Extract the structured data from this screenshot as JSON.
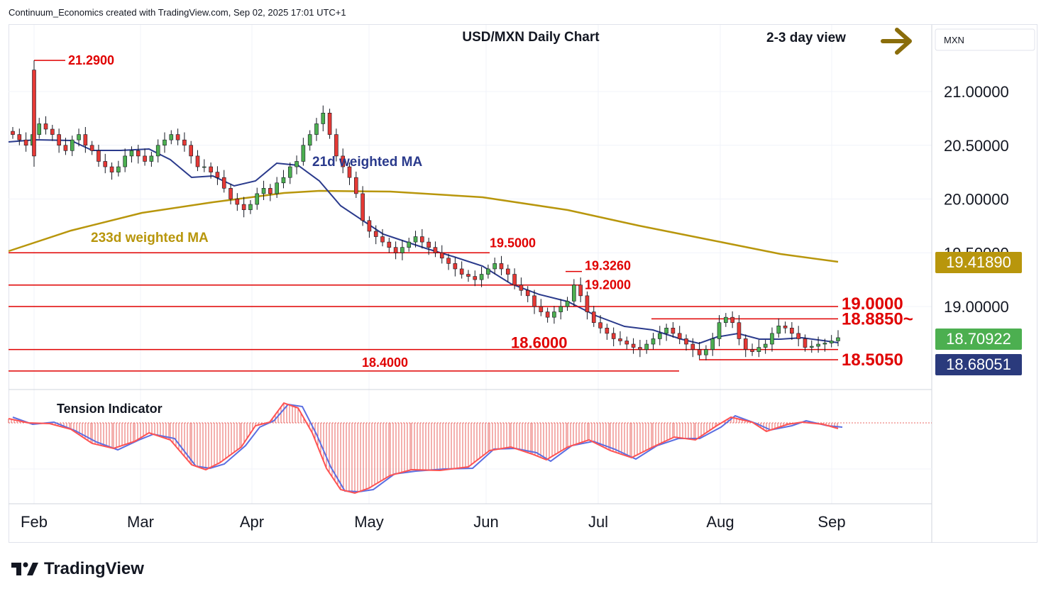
{
  "header": {
    "attribution": "Continuum_Economics created with TradingView.com, Sep 02, 2025 17:01 UTC+1"
  },
  "brand": {
    "name": "TradingView",
    "icon": "tradingview-logo-icon"
  },
  "chart_data": {
    "type": "candlestick",
    "title": "USD/MXN Daily Chart",
    "view_note": "2-3 day view",
    "view_arrow": {
      "icon": "right-arrow-icon",
      "color": "#8a6d0b"
    },
    "currency_label": "MXN",
    "x_ticks": [
      "Feb",
      "Mar",
      "Apr",
      "May",
      "Jun",
      "Jul",
      "Aug",
      "Sep"
    ],
    "y_ticks": [
      "21.00000",
      "20.50000",
      "20.00000",
      "19.50000",
      "19.00000"
    ],
    "ylim": [
      18.2,
      21.6
    ],
    "grid": true,
    "price_badges": [
      {
        "value": "19.41890",
        "color": "#b8960c"
      },
      {
        "value": "18.70922",
        "color": "#4caf50"
      },
      {
        "value": "18.68051",
        "color": "#2a3a7c"
      }
    ],
    "levels": [
      {
        "label": "19.5000",
        "value": 19.5
      },
      {
        "label": "19.2000",
        "value": 19.2
      },
      {
        "label": "19.0000",
        "value": 19.0
      },
      {
        "label": "18.8850~",
        "value": 18.885
      },
      {
        "label": "18.6000",
        "value": 18.6
      },
      {
        "label": "18.5050",
        "value": 18.505
      },
      {
        "label": "18.4000",
        "value": 18.4
      }
    ],
    "annotations": [
      {
        "label": "21.2900",
        "value": 21.29
      },
      {
        "label": "19.3260",
        "value": 19.326
      }
    ],
    "series": [
      {
        "name": "21d weighted MA",
        "color": "#2a3a8c"
      },
      {
        "name": "233d weighted MA",
        "color": "#b8960c"
      }
    ],
    "indicator": {
      "name": "Tension Indicator"
    },
    "candles_closes": [
      20.6,
      20.55,
      20.5,
      20.6,
      20.7,
      20.65,
      20.6,
      20.5,
      20.45,
      20.55,
      20.6,
      20.5,
      20.45,
      20.35,
      20.3,
      20.25,
      20.3,
      20.4,
      20.45,
      20.4,
      20.35,
      20.4,
      20.5,
      20.55,
      20.6,
      20.55,
      20.5,
      20.4,
      20.3,
      20.3,
      20.25,
      20.2,
      20.1,
      20.0,
      19.95,
      19.9,
      19.95,
      20.05,
      20.1,
      20.05,
      20.15,
      20.2,
      20.3,
      20.35,
      20.5,
      20.6,
      20.7,
      20.8,
      20.6,
      20.4,
      20.3,
      20.2,
      20.05,
      19.8,
      19.7,
      19.65,
      19.6,
      19.55,
      19.5,
      19.55,
      19.6,
      19.65,
      19.6,
      19.55,
      19.5,
      19.45,
      19.4,
      19.35,
      19.3,
      19.28,
      19.25,
      19.3,
      19.35,
      19.4,
      19.35,
      19.3,
      19.2,
      19.15,
      19.1,
      19.0,
      18.95,
      18.9,
      18.95,
      19.0,
      19.05,
      19.2,
      19.1,
      18.95,
      18.85,
      18.8,
      18.75,
      18.7,
      18.68,
      18.65,
      18.62,
      18.6,
      18.65,
      18.7,
      18.75,
      18.8,
      18.75,
      18.7,
      18.65,
      18.6,
      18.55,
      18.6,
      18.7,
      18.85,
      18.9,
      18.85,
      18.7,
      18.6,
      18.58,
      18.62,
      18.65,
      18.75,
      18.82,
      18.8,
      18.75,
      18.7,
      18.62,
      18.63,
      18.65,
      18.66,
      18.68,
      18.71
    ]
  }
}
